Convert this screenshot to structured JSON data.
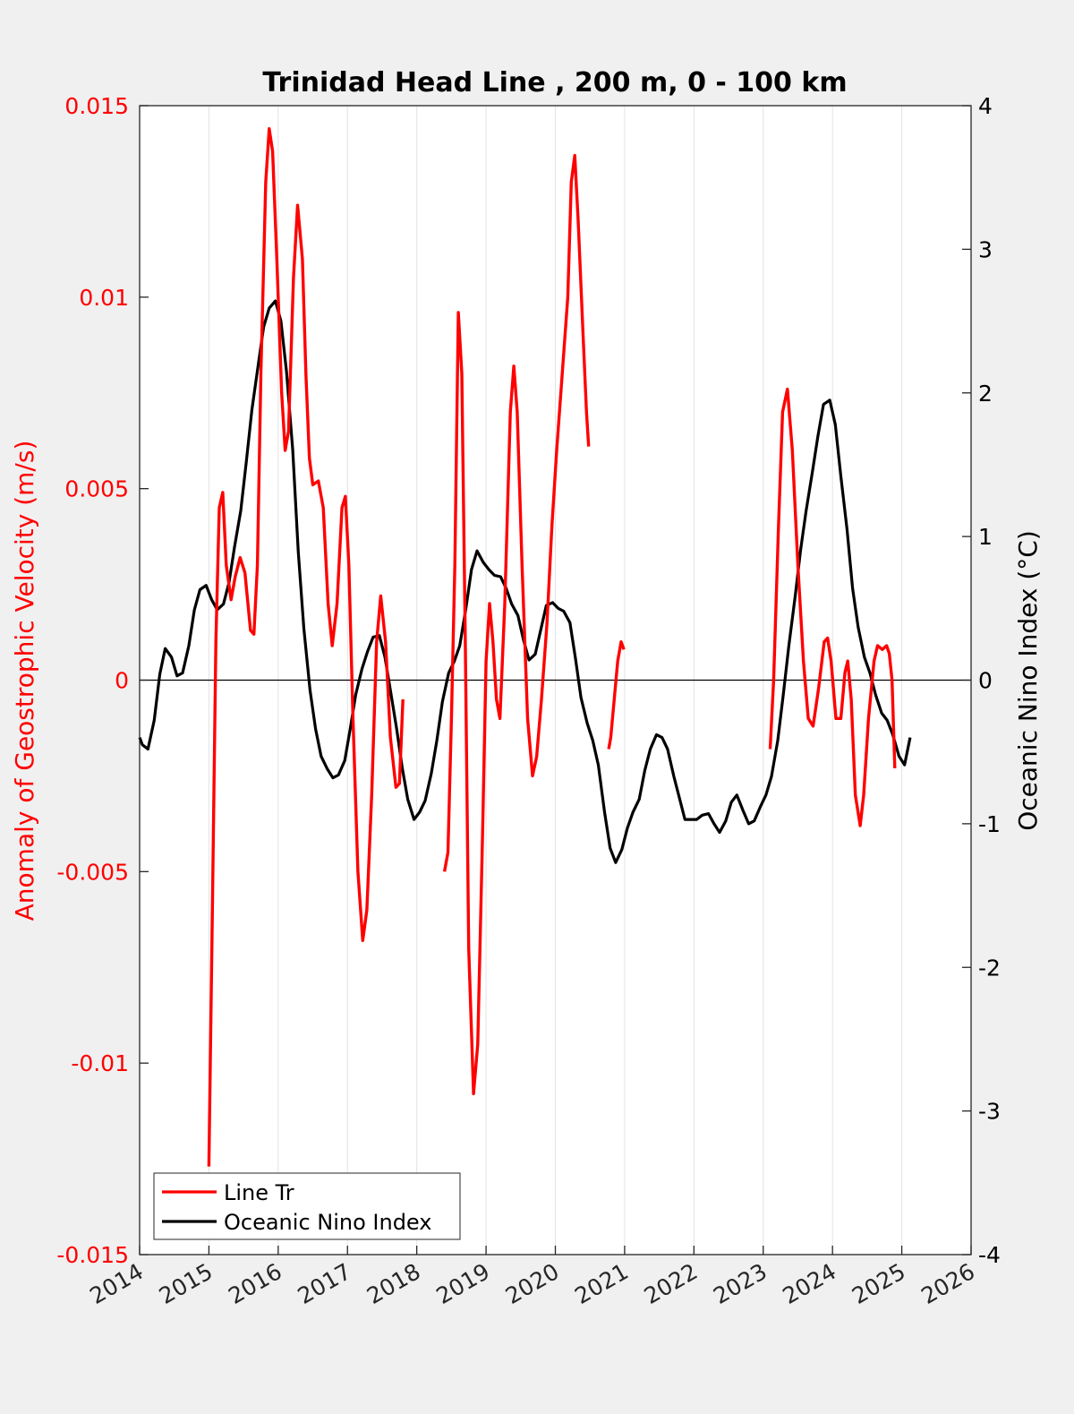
{
  "chart_data": {
    "type": "line",
    "title": "Trinidad Head Line , 200 m, 0 - 100 km",
    "ylabel": "Anomaly of Geostrophic Velocity (m/s)",
    "y2label": "Oceanic Nino Index (°C)",
    "xlim": [
      2014,
      2026
    ],
    "ylim": [
      -0.015,
      0.015
    ],
    "y2lim": [
      -4,
      4
    ],
    "xticks": [
      "2014",
      "2015",
      "2016",
      "2017",
      "2018",
      "2019",
      "2020",
      "2021",
      "2022",
      "2023",
      "2024",
      "2025",
      "2026"
    ],
    "yticks": [
      "-0.015",
      "-0.01",
      "-0.005",
      "0",
      "0.005",
      "0.01",
      "0.015"
    ],
    "y2ticks": [
      "-4",
      "-3",
      "-2",
      "-1",
      "0",
      "1",
      "2",
      "3",
      "4"
    ],
    "grid": "vertical",
    "zero_line": true,
    "legend_position": "bottom-left",
    "colors": {
      "line_tr": "#ff0000",
      "oni": "#000000",
      "left_axis": "#ff0000",
      "right_axis": "#000000"
    },
    "series": [
      {
        "name": "Line Tr",
        "axis": "left",
        "segments": [
          [
            [
              2015.0,
              -0.0127
            ],
            [
              2015.05,
              -0.006
            ],
            [
              2015.1,
              0.001
            ],
            [
              2015.15,
              0.0045
            ],
            [
              2015.2,
              0.0049
            ],
            [
              2015.25,
              0.003
            ],
            [
              2015.32,
              0.0021
            ],
            [
              2015.38,
              0.0027
            ],
            [
              2015.45,
              0.0032
            ],
            [
              2015.52,
              0.0028
            ],
            [
              2015.6,
              0.0013
            ],
            [
              2015.65,
              0.0012
            ],
            [
              2015.7,
              0.003
            ],
            [
              2015.75,
              0.008
            ],
            [
              2015.82,
              0.013
            ],
            [
              2015.87,
              0.0144
            ],
            [
              2015.92,
              0.0138
            ],
            [
              2015.98,
              0.011
            ],
            [
              2016.05,
              0.0075
            ],
            [
              2016.1,
              0.006
            ],
            [
              2016.15,
              0.0065
            ],
            [
              2016.22,
              0.0105
            ],
            [
              2016.28,
              0.0124
            ],
            [
              2016.35,
              0.011
            ],
            [
              2016.4,
              0.008
            ],
            [
              2016.45,
              0.0058
            ],
            [
              2016.5,
              0.0051
            ],
            [
              2016.58,
              0.0052
            ],
            [
              2016.65,
              0.0045
            ],
            [
              2016.72,
              0.002
            ],
            [
              2016.78,
              0.0009
            ],
            [
              2016.85,
              0.002
            ],
            [
              2016.92,
              0.0045
            ],
            [
              2016.97,
              0.0048
            ],
            [
              2017.02,
              0.003
            ],
            [
              2017.08,
              -0.001
            ],
            [
              2017.15,
              -0.005
            ],
            [
              2017.22,
              -0.0068
            ],
            [
              2017.28,
              -0.006
            ],
            [
              2017.35,
              -0.003
            ],
            [
              2017.42,
              0.001
            ],
            [
              2017.48,
              0.0022
            ],
            [
              2017.55,
              0.001
            ],
            [
              2017.62,
              -0.0015
            ],
            [
              2017.7,
              -0.0028
            ],
            [
              2017.75,
              -0.0027
            ],
            [
              2017.8,
              -0.0005
            ]
          ],
          [
            [
              2018.4,
              -0.005
            ],
            [
              2018.45,
              -0.0045
            ],
            [
              2018.5,
              -0.001
            ],
            [
              2018.55,
              0.003
            ],
            [
              2018.6,
              0.0096
            ],
            [
              2018.65,
              0.008
            ],
            [
              2018.7,
              0.001
            ],
            [
              2018.75,
              -0.007
            ],
            [
              2018.82,
              -0.0108
            ],
            [
              2018.88,
              -0.0095
            ],
            [
              2018.95,
              -0.004
            ],
            [
              2019.0,
              0.0005
            ],
            [
              2019.05,
              0.002
            ],
            [
              2019.1,
              0.001
            ],
            [
              2019.15,
              -0.0005
            ],
            [
              2019.2,
              -0.001
            ],
            [
              2019.27,
              0.002
            ],
            [
              2019.35,
              0.007
            ],
            [
              2019.4,
              0.0082
            ],
            [
              2019.45,
              0.007
            ],
            [
              2019.52,
              0.003
            ],
            [
              2019.6,
              -0.001
            ],
            [
              2019.67,
              -0.0025
            ],
            [
              2019.73,
              -0.002
            ],
            [
              2019.8,
              -0.0005
            ],
            [
              2019.88,
              0.0015
            ],
            [
              2019.95,
              0.004
            ],
            [
              2020.02,
              0.006
            ],
            [
              2020.1,
              0.008
            ],
            [
              2020.18,
              0.01
            ],
            [
              2020.23,
              0.013
            ],
            [
              2020.28,
              0.0137
            ],
            [
              2020.33,
              0.012
            ],
            [
              2020.4,
              0.009
            ],
            [
              2020.45,
              0.007
            ],
            [
              2020.48,
              0.0061
            ]
          ],
          [
            [
              2020.77,
              -0.0018
            ],
            [
              2020.8,
              -0.0015
            ],
            [
              2020.85,
              -0.0005
            ],
            [
              2020.9,
              0.0005
            ],
            [
              2020.95,
              0.001
            ],
            [
              2020.99,
              0.0008
            ]
          ],
          [
            [
              2023.1,
              -0.0018
            ],
            [
              2023.15,
              0.0
            ],
            [
              2023.22,
              0.004
            ],
            [
              2023.28,
              0.007
            ],
            [
              2023.35,
              0.0076
            ],
            [
              2023.42,
              0.006
            ],
            [
              2023.5,
              0.003
            ],
            [
              2023.58,
              0.0005
            ],
            [
              2023.65,
              -0.001
            ],
            [
              2023.72,
              -0.0012
            ],
            [
              2023.8,
              -0.0002
            ],
            [
              2023.88,
              0.001
            ],
            [
              2023.93,
              0.0011
            ],
            [
              2023.98,
              0.0005
            ],
            [
              2024.05,
              -0.001
            ],
            [
              2024.12,
              -0.001
            ],
            [
              2024.18,
              0.0002
            ],
            [
              2024.22,
              0.0005
            ],
            [
              2024.27,
              -0.0005
            ],
            [
              2024.33,
              -0.003
            ],
            [
              2024.4,
              -0.0038
            ],
            [
              2024.45,
              -0.003
            ],
            [
              2024.52,
              -0.001
            ],
            [
              2024.6,
              0.0005
            ],
            [
              2024.65,
              0.0009
            ],
            [
              2024.72,
              0.0008
            ],
            [
              2024.78,
              0.0009
            ],
            [
              2024.82,
              0.0007
            ],
            [
              2024.86,
              0.0
            ],
            [
              2024.9,
              -0.0023
            ]
          ]
        ]
      },
      {
        "name": "Oceanic Nino Index",
        "axis": "right",
        "points": [
          [
            2014.0,
            -0.4
          ],
          [
            2014.04,
            -0.45
          ],
          [
            2014.12,
            -0.48
          ],
          [
            2014.21,
            -0.28
          ],
          [
            2014.29,
            0.04
          ],
          [
            2014.37,
            0.22
          ],
          [
            2014.46,
            0.16
          ],
          [
            2014.54,
            0.03
          ],
          [
            2014.62,
            0.05
          ],
          [
            2014.71,
            0.24
          ],
          [
            2014.79,
            0.49
          ],
          [
            2014.87,
            0.63
          ],
          [
            2014.96,
            0.66
          ],
          [
            2015.04,
            0.56
          ],
          [
            2015.12,
            0.49
          ],
          [
            2015.21,
            0.53
          ],
          [
            2015.29,
            0.68
          ],
          [
            2015.37,
            0.93
          ],
          [
            2015.46,
            1.18
          ],
          [
            2015.54,
            1.52
          ],
          [
            2015.62,
            1.88
          ],
          [
            2015.71,
            2.19
          ],
          [
            2015.79,
            2.46
          ],
          [
            2015.87,
            2.59
          ],
          [
            2015.96,
            2.64
          ],
          [
            2016.04,
            2.5
          ],
          [
            2016.12,
            2.15
          ],
          [
            2016.21,
            1.6
          ],
          [
            2016.29,
            0.89
          ],
          [
            2016.37,
            0.36
          ],
          [
            2016.46,
            -0.07
          ],
          [
            2016.54,
            -0.34
          ],
          [
            2016.62,
            -0.53
          ],
          [
            2016.71,
            -0.62
          ],
          [
            2016.79,
            -0.68
          ],
          [
            2016.87,
            -0.66
          ],
          [
            2016.96,
            -0.56
          ],
          [
            2017.04,
            -0.34
          ],
          [
            2017.12,
            -0.1
          ],
          [
            2017.21,
            0.08
          ],
          [
            2017.29,
            0.2
          ],
          [
            2017.37,
            0.3
          ],
          [
            2017.46,
            0.31
          ],
          [
            2017.54,
            0.16
          ],
          [
            2017.62,
            -0.07
          ],
          [
            2017.71,
            -0.34
          ],
          [
            2017.79,
            -0.61
          ],
          [
            2017.87,
            -0.83
          ],
          [
            2017.96,
            -0.97
          ],
          [
            2018.04,
            -0.92
          ],
          [
            2018.12,
            -0.84
          ],
          [
            2018.21,
            -0.65
          ],
          [
            2018.29,
            -0.42
          ],
          [
            2018.37,
            -0.15
          ],
          [
            2018.46,
            0.05
          ],
          [
            2018.54,
            0.13
          ],
          [
            2018.62,
            0.24
          ],
          [
            2018.71,
            0.5
          ],
          [
            2018.79,
            0.77
          ],
          [
            2018.87,
            0.9
          ],
          [
            2018.96,
            0.82
          ],
          [
            2019.04,
            0.77
          ],
          [
            2019.12,
            0.73
          ],
          [
            2019.21,
            0.72
          ],
          [
            2019.29,
            0.64
          ],
          [
            2019.37,
            0.53
          ],
          [
            2019.46,
            0.45
          ],
          [
            2019.54,
            0.28
          ],
          [
            2019.62,
            0.14
          ],
          [
            2019.71,
            0.18
          ],
          [
            2019.79,
            0.35
          ],
          [
            2019.87,
            0.52
          ],
          [
            2019.96,
            0.54
          ],
          [
            2020.04,
            0.5
          ],
          [
            2020.12,
            0.48
          ],
          [
            2020.21,
            0.4
          ],
          [
            2020.29,
            0.15
          ],
          [
            2020.37,
            -0.12
          ],
          [
            2020.46,
            -0.3
          ],
          [
            2020.54,
            -0.42
          ],
          [
            2020.62,
            -0.59
          ],
          [
            2020.71,
            -0.92
          ],
          [
            2020.79,
            -1.17
          ],
          [
            2020.87,
            -1.27
          ],
          [
            2020.96,
            -1.18
          ],
          [
            2021.04,
            -1.03
          ],
          [
            2021.12,
            -0.92
          ],
          [
            2021.21,
            -0.83
          ],
          [
            2021.29,
            -0.63
          ],
          [
            2021.37,
            -0.48
          ],
          [
            2021.46,
            -0.38
          ],
          [
            2021.54,
            -0.4
          ],
          [
            2021.62,
            -0.48
          ],
          [
            2021.71,
            -0.67
          ],
          [
            2021.79,
            -0.82
          ],
          [
            2021.87,
            -0.97
          ],
          [
            2021.96,
            -0.97
          ],
          [
            2022.04,
            -0.97
          ],
          [
            2022.12,
            -0.94
          ],
          [
            2022.21,
            -0.93
          ],
          [
            2022.29,
            -1.0
          ],
          [
            2022.37,
            -1.06
          ],
          [
            2022.46,
            -0.98
          ],
          [
            2022.54,
            -0.85
          ],
          [
            2022.62,
            -0.8
          ],
          [
            2022.71,
            -0.91
          ],
          [
            2022.79,
            -1.0
          ],
          [
            2022.87,
            -0.98
          ],
          [
            2022.96,
            -0.88
          ],
          [
            2023.04,
            -0.8
          ],
          [
            2023.12,
            -0.67
          ],
          [
            2023.21,
            -0.42
          ],
          [
            2023.29,
            -0.1
          ],
          [
            2023.37,
            0.24
          ],
          [
            2023.46,
            0.58
          ],
          [
            2023.54,
            0.91
          ],
          [
            2023.62,
            1.18
          ],
          [
            2023.71,
            1.45
          ],
          [
            2023.79,
            1.7
          ],
          [
            2023.87,
            1.92
          ],
          [
            2023.96,
            1.95
          ],
          [
            2024.04,
            1.78
          ],
          [
            2024.12,
            1.42
          ],
          [
            2024.21,
            1.05
          ],
          [
            2024.29,
            0.64
          ],
          [
            2024.37,
            0.37
          ],
          [
            2024.46,
            0.16
          ],
          [
            2024.54,
            0.05
          ],
          [
            2024.62,
            -0.1
          ],
          [
            2024.71,
            -0.23
          ],
          [
            2024.79,
            -0.28
          ],
          [
            2024.87,
            -0.38
          ],
          [
            2024.96,
            -0.53
          ],
          [
            2025.04,
            -0.59
          ],
          [
            2025.12,
            -0.4
          ]
        ]
      }
    ]
  }
}
